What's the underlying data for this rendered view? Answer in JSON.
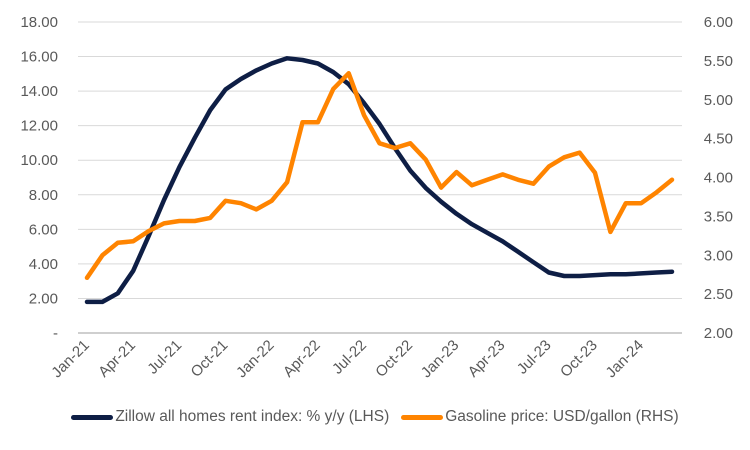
{
  "chart_data": {
    "type": "line",
    "title": "",
    "x": [
      "Jan-21",
      "Feb-21",
      "Mar-21",
      "Apr-21",
      "May-21",
      "Jun-21",
      "Jul-21",
      "Aug-21",
      "Sep-21",
      "Oct-21",
      "Nov-21",
      "Dec-21",
      "Jan-22",
      "Feb-22",
      "Mar-22",
      "Apr-22",
      "May-22",
      "Jun-22",
      "Jul-22",
      "Aug-22",
      "Sep-22",
      "Oct-22",
      "Nov-22",
      "Dec-22",
      "Jan-23",
      "Feb-23",
      "Mar-23",
      "Apr-23",
      "May-23",
      "Jun-23",
      "Jul-23",
      "Aug-23",
      "Sep-23",
      "Oct-23",
      "Nov-23",
      "Dec-23",
      "Jan-24",
      "Feb-24",
      "Mar-24"
    ],
    "x_tick_labels": [
      "Jan-21",
      "Apr-21",
      "Jul-21",
      "Oct-21",
      "Jan-22",
      "Apr-22",
      "Jul-22",
      "Oct-22",
      "Jan-23",
      "Apr-23",
      "Jul-23",
      "Oct-23",
      "Jan-24"
    ],
    "series": [
      {
        "name": "Zillow all homes rent index: % y/y (LHS)",
        "axis": "left",
        "color": "#0e1e45",
        "values": [
          1.8,
          1.8,
          2.3,
          3.6,
          5.6,
          7.7,
          9.6,
          11.3,
          12.9,
          14.1,
          14.7,
          15.2,
          15.6,
          15.9,
          15.8,
          15.6,
          15.1,
          14.4,
          13.3,
          12.1,
          10.7,
          9.4,
          8.4,
          7.6,
          6.9,
          6.3,
          5.8,
          5.3,
          4.7,
          4.1,
          3.5,
          3.3,
          3.3,
          3.35,
          3.4,
          3.4,
          3.45,
          3.5,
          3.55
        ]
      },
      {
        "name": "Gasoline price: USD/gallon (RHS)",
        "axis": "right",
        "color": "#ff8400",
        "values": [
          2.71,
          3.0,
          3.16,
          3.18,
          3.31,
          3.41,
          3.44,
          3.44,
          3.48,
          3.7,
          3.67,
          3.59,
          3.7,
          3.94,
          4.71,
          4.71,
          5.14,
          5.34,
          4.8,
          4.44,
          4.38,
          4.44,
          4.23,
          3.87,
          4.07,
          3.9,
          3.97,
          4.04,
          3.97,
          3.92,
          4.14,
          4.26,
          4.32,
          4.06,
          3.3,
          3.67,
          3.67,
          3.81,
          3.97
        ]
      }
    ],
    "y_left": {
      "ylim": [
        0,
        18
      ],
      "ticks": [
        0,
        2,
        4,
        6,
        8,
        10,
        12,
        14,
        16,
        18
      ],
      "tick_labels": [
        "-",
        "2.00",
        "4.00",
        "6.00",
        "8.00",
        "10.00",
        "12.00",
        "14.00",
        "16.00",
        "18.00"
      ]
    },
    "y_right": {
      "ylim": [
        2,
        6
      ],
      "ticks": [
        2,
        2.5,
        3,
        3.5,
        4,
        4.5,
        5,
        5.5,
        6
      ],
      "tick_labels": [
        "2.00",
        "2.50",
        "3.00",
        "3.50",
        "4.00",
        "4.50",
        "5.00",
        "5.50",
        "6.00"
      ]
    },
    "grid": true,
    "gridline_color": "#d9d9d9",
    "legend_position": "bottom"
  }
}
